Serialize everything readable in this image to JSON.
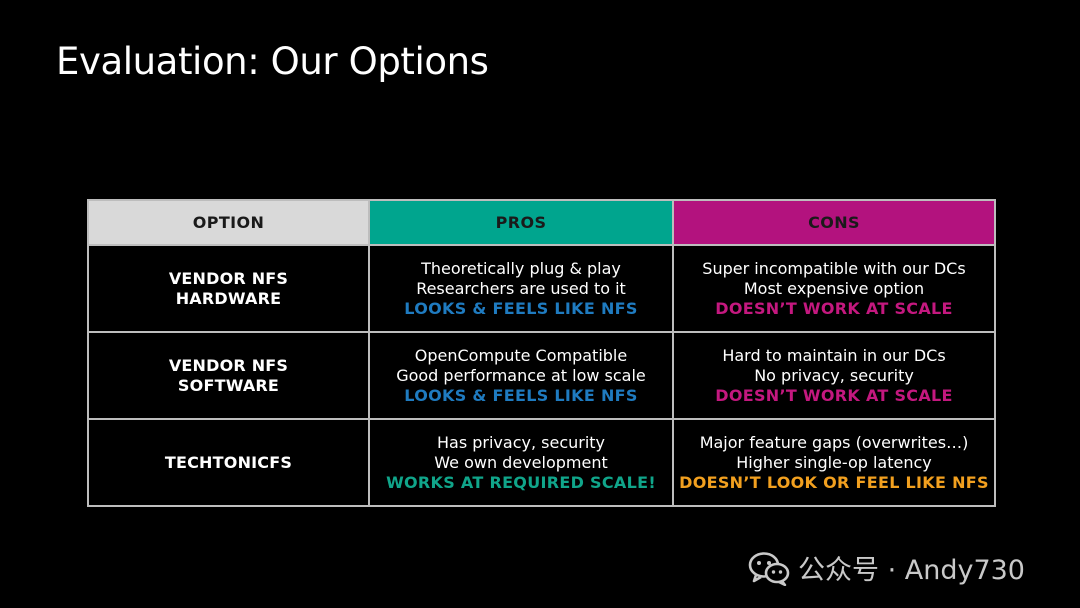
{
  "title": "Evaluation: Our Options",
  "table": {
    "headers": {
      "option": "OPTION",
      "pros": "PROS",
      "cons": "CONS"
    },
    "rows": [
      {
        "option_line1": "VENDOR NFS",
        "option_line2": "HARDWARE",
        "pros": [
          "Theoretically plug & play",
          "Researchers are used to it"
        ],
        "pros_highlight": "LOOKS & FEELS LIKE NFS",
        "cons": [
          "Super incompatible with our DCs",
          "Most expensive option"
        ],
        "cons_highlight": "DOESN’T WORK AT SCALE"
      },
      {
        "option_line1": "VENDOR NFS",
        "option_line2": "SOFTWARE",
        "pros": [
          "OpenCompute Compatible",
          "Good performance at low scale"
        ],
        "pros_highlight": "LOOKS & FEELS LIKE NFS",
        "cons": [
          "Hard to maintain in our DCs",
          "No privacy, security"
        ],
        "cons_highlight": "DOESN’T WORK AT SCALE"
      },
      {
        "option_line1": "TECHTONICFS",
        "option_line2": "",
        "pros": [
          "Has privacy, security",
          "We own development"
        ],
        "pros_highlight": "WORKS AT REQUIRED SCALE!",
        "cons": [
          "Major feature gaps (overwrites…)",
          "Higher single-op latency"
        ],
        "cons_highlight": "DOESN’T LOOK OR FEEL LIKE NFS"
      }
    ]
  },
  "colors": {
    "background": "#000000",
    "header_option": "#d9d9d9",
    "header_pros": "#00a58e",
    "header_cons": "#b3127e",
    "highlight_blue": "#1f7bc0",
    "highlight_magenta": "#c4187f",
    "highlight_green": "#10a58a",
    "highlight_orange": "#f2a01f"
  },
  "watermark": {
    "icon": "wechat-icon",
    "text": "公众号 · Andy730"
  }
}
